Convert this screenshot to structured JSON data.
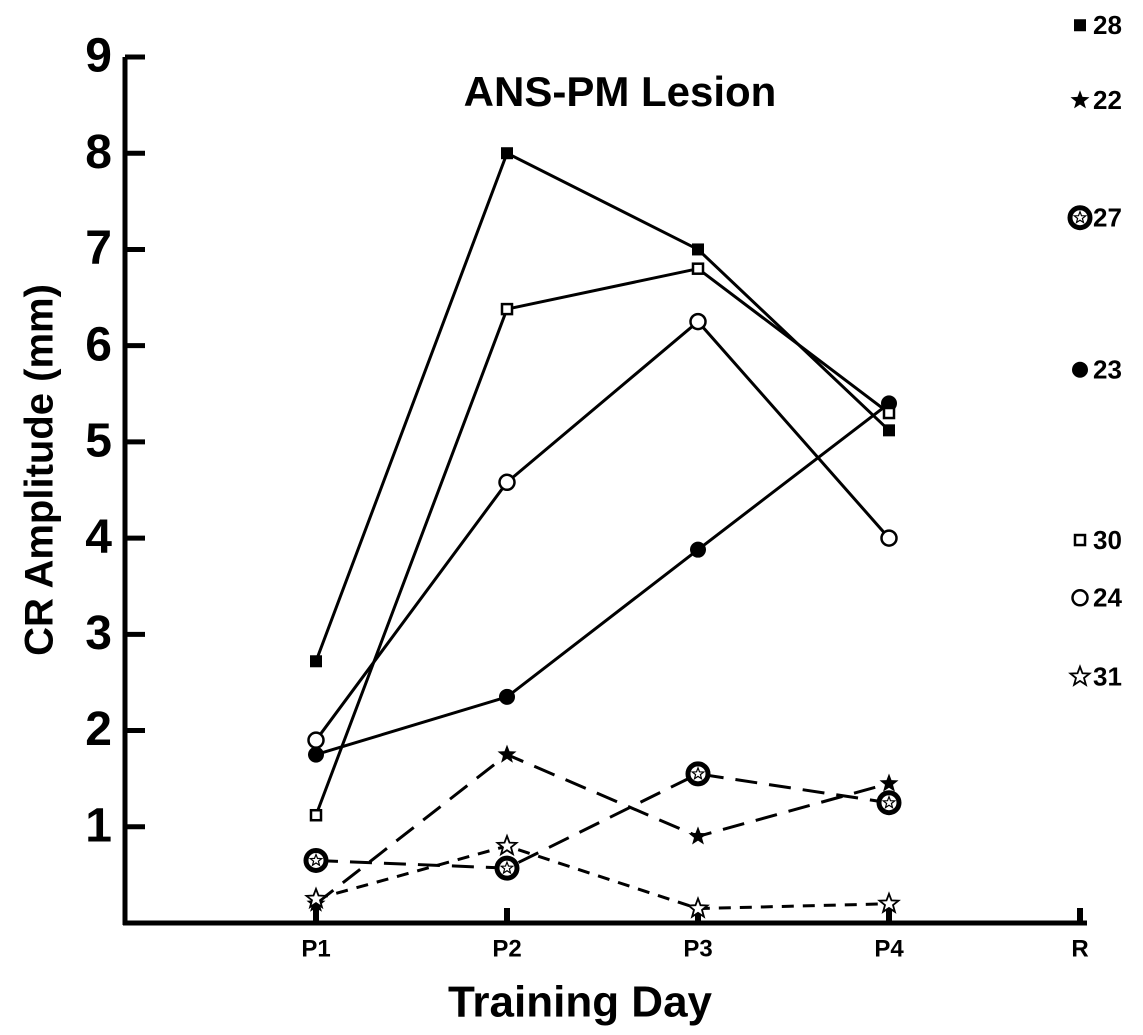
{
  "chart_data": {
    "type": "line",
    "title": "ANS-PM Lesion",
    "x_label": "Training Day",
    "y_label": "CR Amplitude (mm)",
    "categories": [
      "P1",
      "P2",
      "P3",
      "P4",
      "R"
    ],
    "ylim": [
      0,
      9
    ],
    "yticks": [
      1,
      2,
      3,
      4,
      5,
      6,
      7,
      8,
      9
    ],
    "series": [
      {
        "name": "28",
        "color": "#000",
        "marker": "filled-square",
        "dash": "solid",
        "values": [
          2.72,
          8.0,
          7.0,
          5.12,
          9.33
        ]
      },
      {
        "name": "22",
        "color": "#000",
        "marker": "filled-star",
        "dash": "dashed",
        "values": [
          0.2,
          1.75,
          0.9,
          1.45,
          8.55
        ]
      },
      {
        "name": "27",
        "color": "#000",
        "marker": "circled-star",
        "dash": "dashed",
        "values": [
          0.65,
          0.57,
          1.55,
          1.25,
          7.33
        ]
      },
      {
        "name": "23",
        "color": "#000",
        "marker": "filled-circle",
        "dash": "solid",
        "values": [
          1.75,
          2.35,
          3.88,
          5.4,
          5.75
        ]
      },
      {
        "name": "30",
        "color": "#000",
        "marker": "open-square",
        "dash": "solid",
        "values": [
          1.12,
          6.38,
          6.8,
          5.3,
          3.98
        ]
      },
      {
        "name": "24",
        "color": "#000",
        "marker": "open-circle",
        "dash": "solid",
        "values": [
          1.9,
          4.58,
          6.25,
          4.0,
          3.38
        ]
      },
      {
        "name": "31",
        "color": "#000",
        "marker": "open-star",
        "dash": "short-dashed",
        "values": [
          0.25,
          0.8,
          0.15,
          0.2,
          2.56
        ]
      }
    ]
  }
}
